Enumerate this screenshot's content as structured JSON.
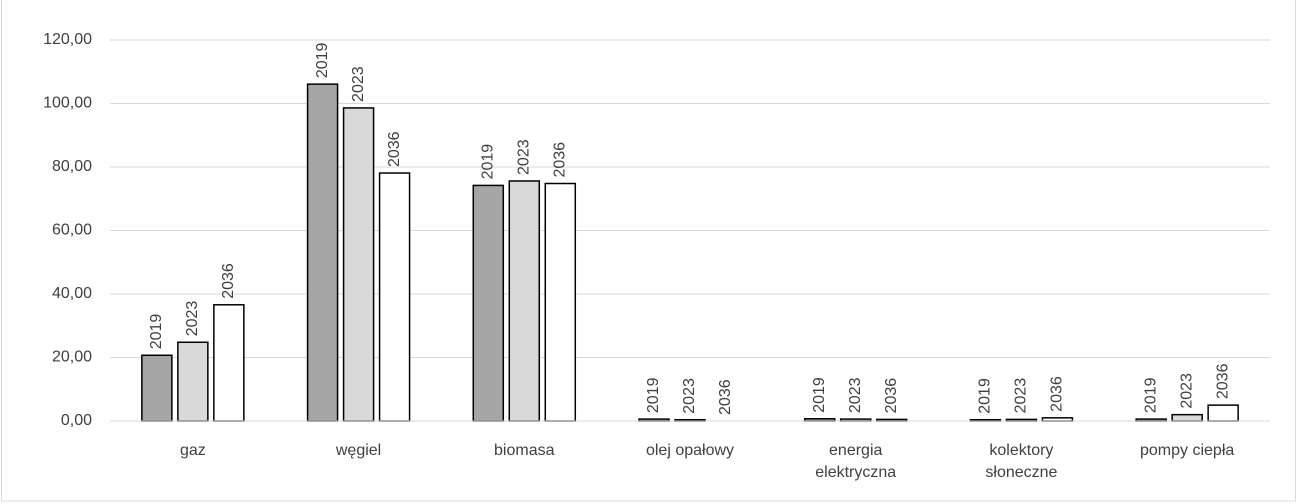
{
  "chart_data": {
    "type": "bar",
    "categories": [
      "gaz",
      "węgiel",
      "biomasa",
      "olej opałowy",
      "energia elektryczna",
      "kolektory słoneczne",
      "pompy ciepła"
    ],
    "series": [
      {
        "name": "2019",
        "color": "#a6a6a6",
        "values": [
          20.7,
          106.1,
          74.2,
          0.6,
          0.7,
          0.4,
          0.6
        ]
      },
      {
        "name": "2023",
        "color": "#d9d9d9",
        "values": [
          24.8,
          98.6,
          75.6,
          0.4,
          0.6,
          0.5,
          2.0
        ]
      },
      {
        "name": "2036",
        "color": "#ffffff",
        "values": [
          36.6,
          78.1,
          74.8,
          0,
          0.5,
          1.0,
          5.0
        ]
      }
    ],
    "ylim": [
      0,
      120
    ],
    "yticks": [
      {
        "value": 0,
        "label": "0,00"
      },
      {
        "value": 20,
        "label": "20,00"
      },
      {
        "value": 40,
        "label": "40,00"
      },
      {
        "value": 60,
        "label": "60,00"
      },
      {
        "value": 80,
        "label": "80,00"
      },
      {
        "value": 100,
        "label": "100,00"
      },
      {
        "value": 120,
        "label": "120,00"
      }
    ],
    "grid": true
  }
}
